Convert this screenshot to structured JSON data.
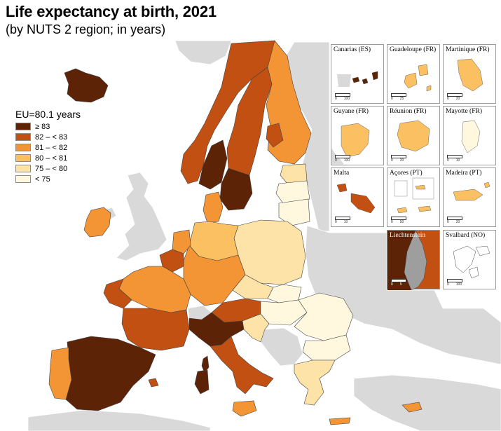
{
  "title": "Life expectancy at birth, 2021",
  "subtitle": "(by NUTS 2 region; in years)",
  "legend": {
    "title": "EU=80.1 years",
    "items": [
      {
        "label": "≥ 83",
        "color": "#5c2306"
      },
      {
        "label": "82 – < 83",
        "color": "#c25012"
      },
      {
        "label": "81 – < 82",
        "color": "#f49535"
      },
      {
        "label": "80 – < 81",
        "color": "#fbc061"
      },
      {
        "label": "75 – < 80",
        "color": "#fde3a7"
      },
      {
        "label": "< 75",
        "color": "#fff8df"
      }
    ]
  },
  "colors": {
    "sea": "#ffffff",
    "non_eu_land": "#d9d9d9",
    "no_data": "#9e9e9e",
    "border": "#444444"
  },
  "insets": [
    {
      "label": "Canarias (ES)",
      "scale": [
        "0",
        "100"
      ]
    },
    {
      "label": "Guadeloupe (FR)",
      "scale": [
        "0",
        "25"
      ]
    },
    {
      "label": "Martinique (FR)",
      "scale": [
        "0",
        "20"
      ]
    },
    {
      "label": "Guyane (FR)",
      "scale": [
        "0",
        "100"
      ]
    },
    {
      "label": "Réunion (FR)",
      "scale": [
        "0",
        "20"
      ]
    },
    {
      "label": "Mayotte (FR)",
      "scale": [
        "0",
        "10"
      ]
    },
    {
      "label": "Malta",
      "scale": [
        "0",
        "10"
      ]
    },
    {
      "label": "Açores (PT)",
      "scale": [
        "0",
        "50"
      ]
    },
    {
      "label": "Madeira (PT)",
      "scale": [
        "0",
        "20"
      ]
    },
    {
      "label": "Liechtenstein",
      "scale": [
        "0",
        "5"
      ]
    },
    {
      "label": "Svalbard (NO)",
      "scale": [
        "0",
        "100"
      ]
    }
  ]
}
